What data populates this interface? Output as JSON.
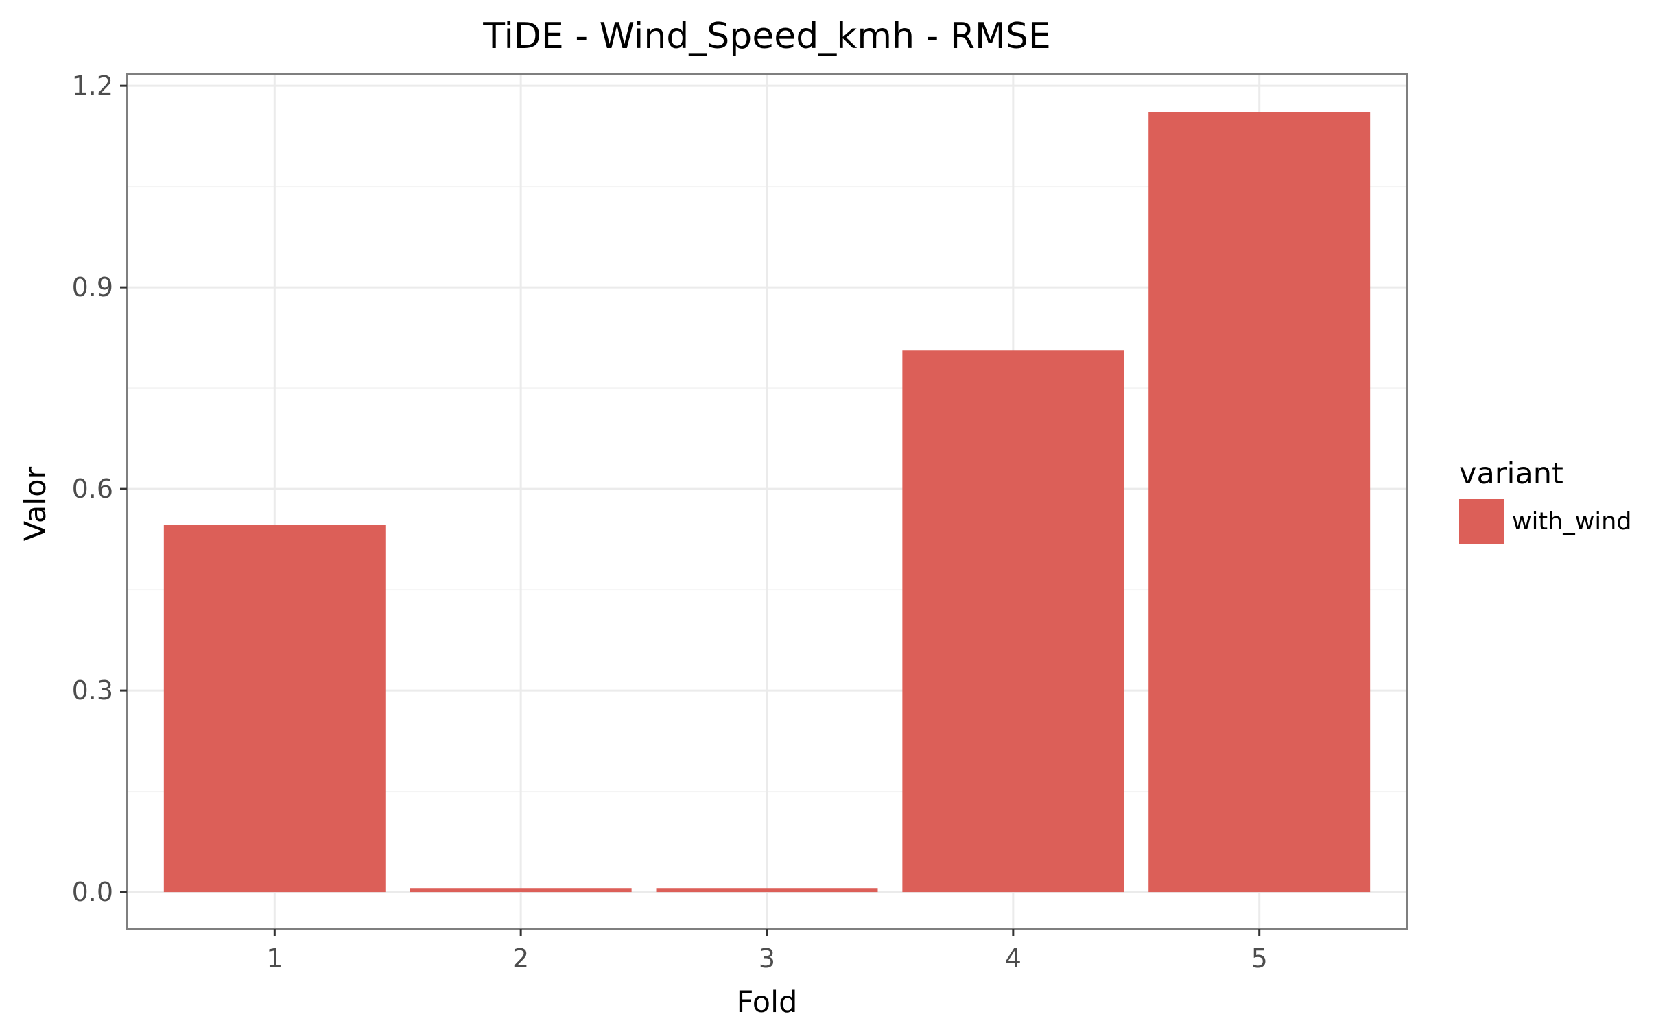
{
  "chart_data": {
    "type": "bar",
    "title": "TiDE - Wind_Speed_kmh - RMSE",
    "xlabel": "Fold",
    "ylabel": "Valor",
    "categories": [
      "1",
      "2",
      "3",
      "4",
      "5"
    ],
    "series": [
      {
        "name": "with_wind",
        "values": [
          0.547,
          0.006,
          0.006,
          0.806,
          1.161
        ]
      }
    ],
    "ylim": [
      -0.055,
      1.2175
    ],
    "yticks": [
      0.0,
      0.3,
      0.6,
      0.9,
      1.2
    ],
    "ytick_labels": [
      "0.0",
      "0.3",
      "0.6",
      "0.9",
      "1.2"
    ],
    "grid": true,
    "legend": {
      "title": "variant",
      "position": "right"
    },
    "colors": {
      "bar": "#DC5F58",
      "grid": "#EBEBEB",
      "panel_border": "#7F7F7F",
      "tick_text": "#4D4D4D"
    }
  }
}
